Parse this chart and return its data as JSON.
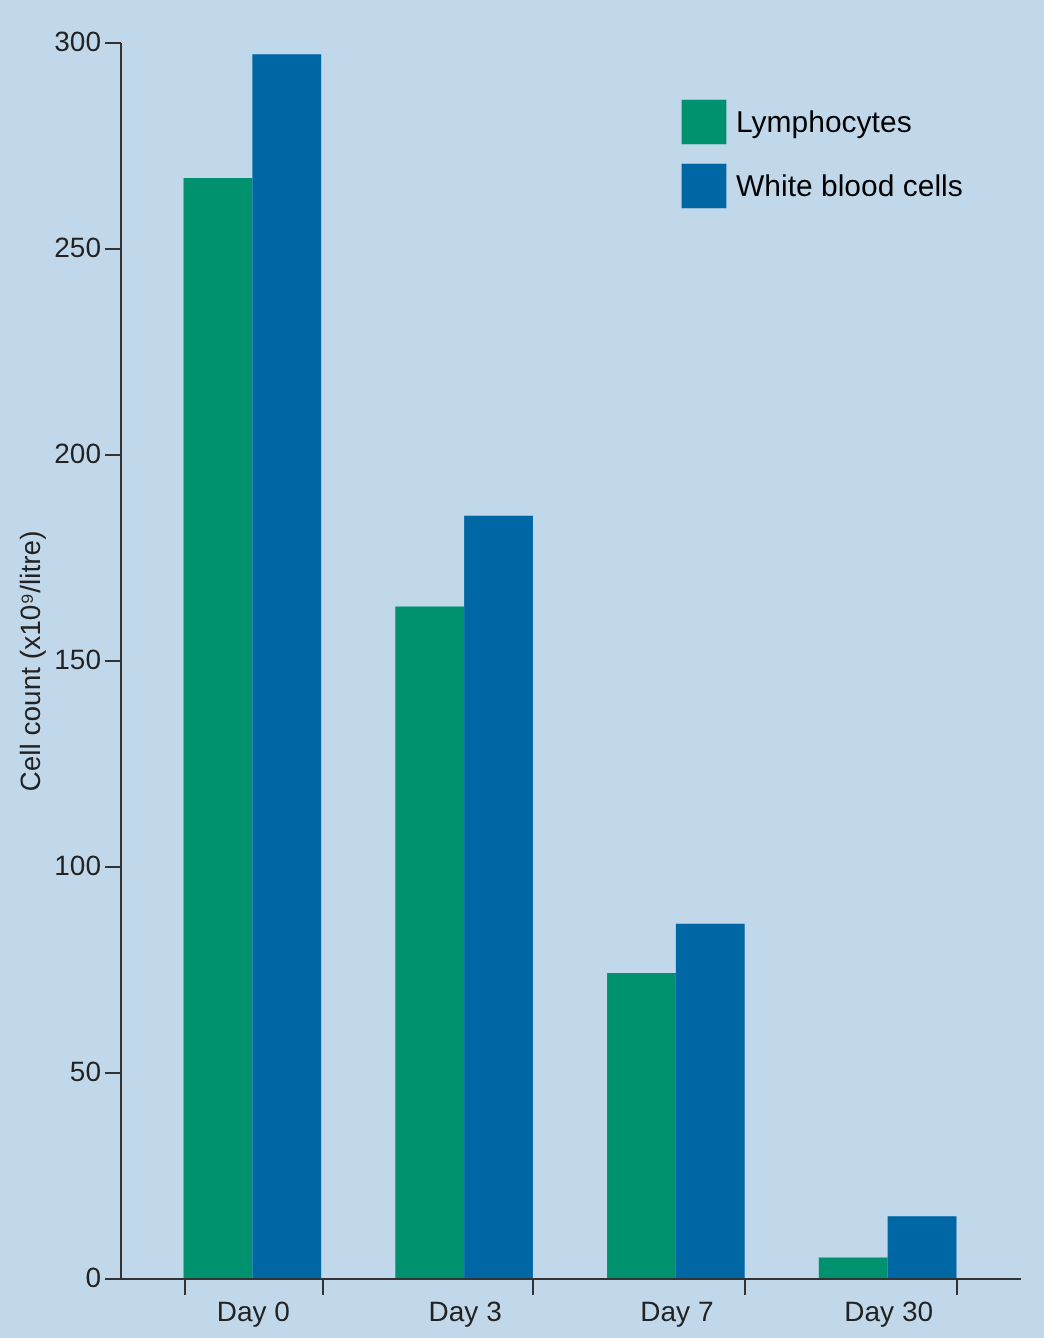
{
  "chart_data": {
    "type": "bar",
    "ylabel": "Cell count (x10⁹/litre)",
    "categories": [
      "Day 0",
      "Day 3",
      "Day 7",
      "Day 30"
    ],
    "series": [
      {
        "name": "Lymphocytes",
        "color": "#00916e",
        "values": [
          267,
          163,
          74,
          5
        ]
      },
      {
        "name": "White blood cells",
        "color": "#0067a5",
        "values": [
          297,
          185,
          86,
          15
        ]
      }
    ],
    "ylim": [
      0,
      300
    ],
    "yticks": [
      0,
      50,
      100,
      150,
      200,
      250,
      300
    ],
    "grid": false,
    "legend": "top right"
  }
}
